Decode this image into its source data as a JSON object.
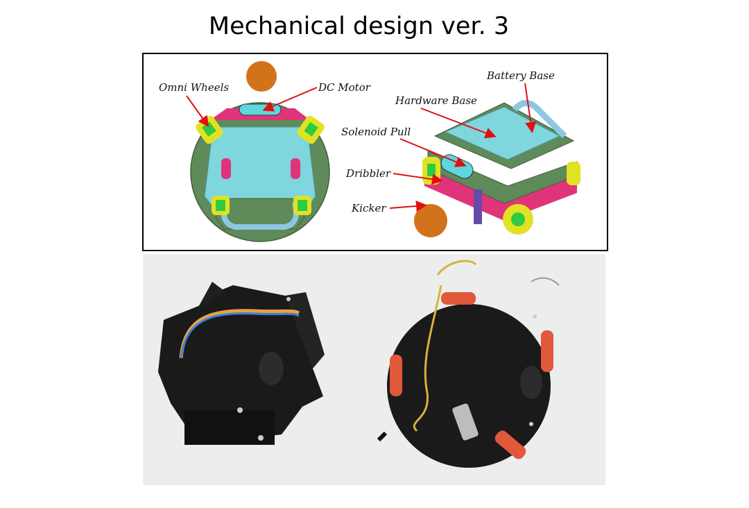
{
  "slide": {
    "title": "Mechanical design ver. 3"
  },
  "cad_diagram": {
    "labels": {
      "omni_wheels": "Omni Wheels",
      "dc_motor": "DC Motor",
      "battery_base": "Battery Base",
      "hardware_base": "Hardware Base",
      "solenoid_pull": "Solenoid Pull",
      "dribbler": "Dribbler",
      "kicker": "Kicker"
    },
    "colors": {
      "plate": "#5f8a5a",
      "hardware_base": "#7fd6dc",
      "battery_base": "#8cc8e0",
      "accent": "#e0347a",
      "wheel": "#e2e224",
      "wheel_hub": "#2ecc40",
      "ball": "#d2731c",
      "arrow": "#e01010"
    }
  },
  "photo": {
    "background": "#eceeee",
    "robot_color": "#1a1a1a",
    "wheel_color": "#e2583a"
  }
}
